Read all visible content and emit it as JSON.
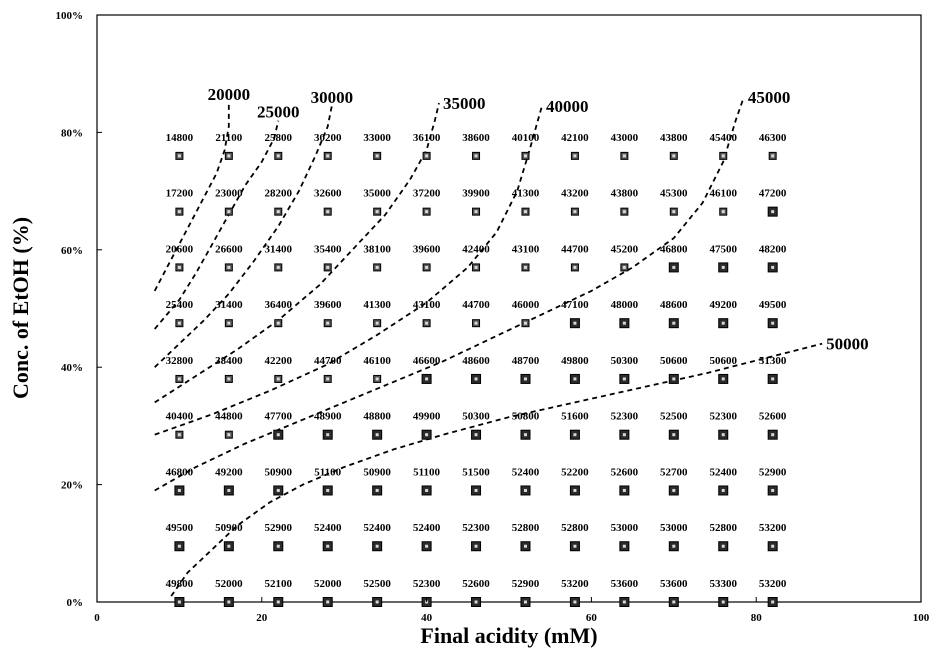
{
  "chart_data": {
    "type": "heatmap",
    "title": "",
    "xlabel": "Final acidity (mM)",
    "ylabel": "Conc. of EtOH (%)",
    "xlim": [
      0,
      100
    ],
    "ylim": [
      0,
      100
    ],
    "x_ticks": [
      "0",
      "20",
      "40",
      "60",
      "80",
      "100"
    ],
    "y_ticks": [
      "0%",
      "20%",
      "40%",
      "60%",
      "80%",
      "100%"
    ],
    "grid": false,
    "x": [
      10,
      16,
      22,
      28,
      34,
      40,
      46,
      52,
      58,
      64,
      70,
      76,
      82
    ],
    "y": [
      76,
      66.5,
      57,
      47.5,
      38,
      28.5,
      19,
      9.5,
      0
    ],
    "values": [
      [
        14800,
        21100,
        25800,
        30200,
        33000,
        36100,
        38600,
        40100,
        42100,
        43000,
        43800,
        45400,
        46300
      ],
      [
        17200,
        23000,
        28200,
        32600,
        35000,
        37200,
        39900,
        41300,
        43200,
        43800,
        45300,
        46100,
        47200
      ],
      [
        20600,
        26600,
        31400,
        35400,
        38100,
        39600,
        42400,
        43100,
        44700,
        45200,
        46800,
        47500,
        48200
      ],
      [
        25400,
        31400,
        36400,
        39600,
        41300,
        43100,
        44700,
        46000,
        47100,
        48000,
        48600,
        49200,
        49500
      ],
      [
        32800,
        38400,
        42200,
        44700,
        46100,
        46600,
        48600,
        48700,
        49800,
        50300,
        50600,
        50600,
        51300
      ],
      [
        40400,
        44800,
        47700,
        48900,
        48800,
        49900,
        50300,
        50800,
        51600,
        52300,
        52500,
        52300,
        52600
      ],
      [
        46800,
        49200,
        50900,
        51100,
        50900,
        51100,
        51500,
        52400,
        52200,
        52600,
        52700,
        52400,
        52900
      ],
      [
        49500,
        50900,
        52900,
        52400,
        52400,
        52400,
        52300,
        52800,
        52800,
        53000,
        53000,
        52800,
        53200
      ],
      [
        49800,
        52000,
        52100,
        52000,
        52500,
        52300,
        52600,
        52900,
        53200,
        53600,
        53600,
        53300,
        53200
      ]
    ],
    "contours": [
      {
        "label": "20000",
        "points": [
          [
            7,
            53
          ],
          [
            8.5,
            57
          ],
          [
            10,
            61
          ],
          [
            11.5,
            65
          ],
          [
            13,
            69
          ],
          [
            14.5,
            73
          ],
          [
            15.5,
            77
          ],
          [
            16,
            81
          ],
          [
            16,
            85
          ]
        ]
      },
      {
        "label": "25000",
        "points": [
          [
            7,
            46.5
          ],
          [
            10,
            51.5
          ],
          [
            12,
            56
          ],
          [
            14,
            61
          ],
          [
            16,
            66
          ],
          [
            18,
            71
          ],
          [
            20,
            75
          ],
          [
            21.5,
            79
          ],
          [
            22,
            82
          ]
        ]
      },
      {
        "label": "30000",
        "points": [
          [
            7,
            40
          ],
          [
            10,
            44
          ],
          [
            13,
            48
          ],
          [
            16,
            52.5
          ],
          [
            19,
            58
          ],
          [
            22,
            64
          ],
          [
            24.5,
            70
          ],
          [
            26.5,
            76
          ],
          [
            28,
            81
          ],
          [
            28.5,
            84.5
          ]
        ]
      },
      {
        "label": "35000",
        "points": [
          [
            7,
            34
          ],
          [
            12,
            38.5
          ],
          [
            17,
            43
          ],
          [
            22,
            48
          ],
          [
            27,
            54
          ],
          [
            31,
            60
          ],
          [
            35,
            66
          ],
          [
            38,
            72
          ],
          [
            40,
            77
          ],
          [
            41,
            82
          ],
          [
            41.5,
            85
          ]
        ]
      },
      {
        "label": "40000",
        "points": [
          [
            7,
            28.5
          ],
          [
            14,
            32
          ],
          [
            21,
            36
          ],
          [
            28,
            40.5
          ],
          [
            34,
            45.5
          ],
          [
            40,
            51
          ],
          [
            45,
            57
          ],
          [
            48.5,
            63
          ],
          [
            51,
            70
          ],
          [
            52.5,
            77
          ],
          [
            53.5,
            82
          ],
          [
            54,
            84.5
          ]
        ]
      },
      {
        "label": "45000",
        "points": [
          [
            7,
            19
          ],
          [
            12,
            23
          ],
          [
            18,
            27
          ],
          [
            24,
            30.5
          ],
          [
            30,
            34
          ],
          [
            36,
            37.5
          ],
          [
            42,
            41
          ],
          [
            48,
            45
          ],
          [
            54,
            49
          ],
          [
            60,
            53
          ],
          [
            65,
            57
          ],
          [
            70,
            62
          ],
          [
            73.5,
            68
          ],
          [
            76,
            75
          ],
          [
            77.5,
            82
          ],
          [
            78.5,
            86
          ]
        ]
      },
      {
        "label": "50000",
        "points": [
          [
            9,
            1
          ],
          [
            11,
            5
          ],
          [
            14,
            9
          ],
          [
            17,
            13
          ],
          [
            21,
            17
          ],
          [
            25,
            20
          ],
          [
            30,
            23
          ],
          [
            36,
            26
          ],
          [
            42,
            28.5
          ],
          [
            50,
            31.5
          ],
          [
            58,
            34
          ],
          [
            66,
            36.5
          ],
          [
            74,
            39
          ],
          [
            81,
            41.5
          ],
          [
            88,
            44
          ]
        ]
      }
    ]
  }
}
